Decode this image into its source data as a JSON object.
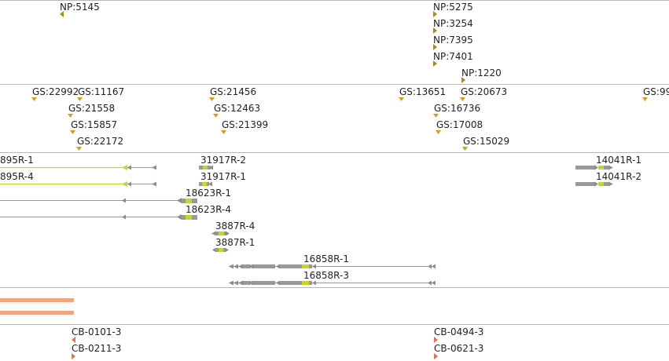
{
  "colors": {
    "background": "#ffffff",
    "divider": "#b8b8b8",
    "np_marker": "#b8860b",
    "gs_marker": "#d4a017",
    "transcript_line": "#999999",
    "transcript_arrow": "#8c8c8c",
    "exon": "#999999",
    "cds": "#c8d42a",
    "utr_line_highlight": "#c8d42a",
    "coverage_bar": "#f4a57c",
    "cb_marker": "#f26b4f"
  },
  "tracks": {
    "np": {
      "features": [
        {
          "label": "NP:5145",
          "marker": "triangle-left"
        },
        {
          "label": "NP:5275",
          "marker": "triangle-right"
        },
        {
          "label": "NP:3254",
          "marker": "triangle-right"
        },
        {
          "label": "NP:7395",
          "marker": "triangle-right"
        },
        {
          "label": "NP:7401",
          "marker": "triangle-right"
        },
        {
          "label": "NP:1220",
          "marker": "triangle-right"
        }
      ]
    },
    "gs": {
      "features": [
        {
          "label": "GS:22992",
          "marker": "triangle-down"
        },
        {
          "label": "GS:11167",
          "marker": "triangle-down"
        },
        {
          "label": "GS:21558",
          "marker": "triangle-down"
        },
        {
          "label": "GS:15857",
          "marker": "triangle-down"
        },
        {
          "label": "GS:22172",
          "marker": "triangle-down"
        },
        {
          "label": "GS:21456",
          "marker": "triangle-down"
        },
        {
          "label": "GS:12463",
          "marker": "triangle-down"
        },
        {
          "label": "GS:21399",
          "marker": "triangle-down"
        },
        {
          "label": "GS:13651",
          "marker": "triangle-down"
        },
        {
          "label": "GS:20673",
          "marker": "triangle-down"
        },
        {
          "label": "GS:16736",
          "marker": "triangle-down"
        },
        {
          "label": "GS:17008",
          "marker": "triangle-down"
        },
        {
          "label": "GS:15029",
          "marker": "triangle-down"
        },
        {
          "label": "GS:99",
          "marker": "triangle-down"
        }
      ]
    },
    "transcripts": {
      "features": [
        {
          "label": "895R-1"
        },
        {
          "label": "895R-4"
        },
        {
          "label": "31917R-2"
        },
        {
          "label": "31917R-1"
        },
        {
          "label": "18623R-1"
        },
        {
          "label": "18623R-4"
        },
        {
          "label": "3887R-4"
        },
        {
          "label": "3887R-1"
        },
        {
          "label": "16858R-1"
        },
        {
          "label": "16858R-3"
        },
        {
          "label": "14041R-1"
        },
        {
          "label": "14041R-2"
        }
      ]
    },
    "cb": {
      "features": [
        {
          "label": "CB-0101-3",
          "marker": "triangle-left"
        },
        {
          "label": "CB-0211-3",
          "marker": "triangle-right"
        },
        {
          "label": "CB-0494-3",
          "marker": "triangle-right"
        },
        {
          "label": "CB-0621-3",
          "marker": "triangle-right"
        }
      ]
    }
  }
}
